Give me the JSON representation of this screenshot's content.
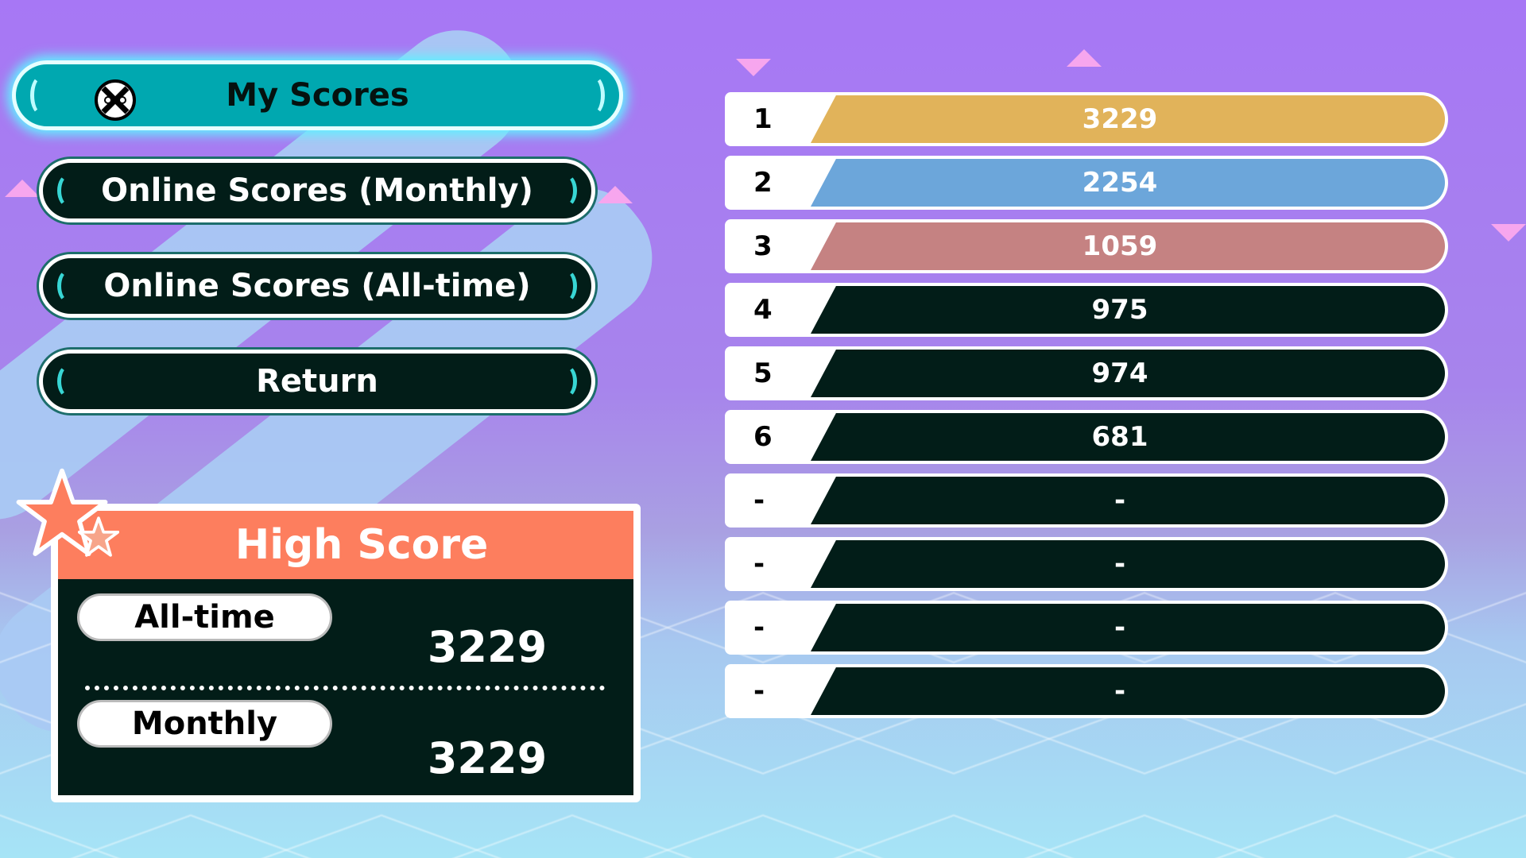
{
  "menu": {
    "items": [
      {
        "label": "My Scores",
        "icon": "controller-x-icon",
        "selected": true
      },
      {
        "label": "Online Scores (Monthly)"
      },
      {
        "label": "Online Scores (All-time)"
      },
      {
        "label": "Return"
      }
    ]
  },
  "leaderboard": {
    "rows": [
      {
        "rank": "1",
        "score": "3229",
        "color": "#e1b35a"
      },
      {
        "rank": "2",
        "score": "2254",
        "color": "#6ca6da"
      },
      {
        "rank": "3",
        "score": "1059",
        "color": "#c58282"
      },
      {
        "rank": "4",
        "score": "975",
        "color": "#021d18"
      },
      {
        "rank": "5",
        "score": "974",
        "color": "#021d18"
      },
      {
        "rank": "6",
        "score": "681",
        "color": "#021d18"
      },
      {
        "rank": "-",
        "score": "-",
        "color": "#021d18"
      },
      {
        "rank": "-",
        "score": "-",
        "color": "#021d18"
      },
      {
        "rank": "-",
        "score": "-",
        "color": "#021d18"
      },
      {
        "rank": "-",
        "score": "-",
        "color": "#021d18"
      }
    ]
  },
  "high_score": {
    "title": "High Score",
    "all_time_label": "All-time",
    "all_time_value": "3229",
    "monthly_label": "Monthly",
    "monthly_value": "3229"
  }
}
